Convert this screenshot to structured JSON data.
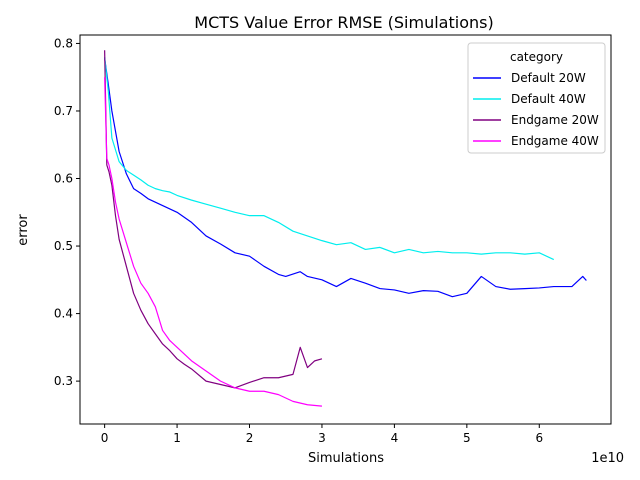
{
  "chart_data": {
    "type": "line",
    "title": "MCTS Value Error RMSE (Simulations)",
    "xlabel": "Simulations",
    "ylabel": "error",
    "x_offset_label": "1e10",
    "xlim": [
      -0.34,
      6.99
    ],
    "ylim": [
      0.2365,
      0.8125
    ],
    "x_ticks": [
      0,
      1,
      2,
      3,
      4,
      5,
      6
    ],
    "y_ticks": [
      0.3,
      0.4,
      0.5,
      0.6,
      0.7,
      0.8
    ],
    "grid": false,
    "legend": {
      "title": "category",
      "placement": "top-right"
    },
    "series": [
      {
        "name": "Default 20W",
        "color": "#0000ff",
        "x": [
          0.0,
          0.05,
          0.1,
          0.2,
          0.3,
          0.4,
          0.5,
          0.6,
          0.7,
          0.8,
          0.9,
          1.0,
          1.2,
          1.4,
          1.6,
          1.8,
          2.0,
          2.2,
          2.4,
          2.5,
          2.7,
          2.8,
          3.0,
          3.2,
          3.4,
          3.6,
          3.8,
          4.0,
          4.2,
          4.4,
          4.6,
          4.8,
          5.0,
          5.2,
          5.4,
          5.6,
          5.8,
          6.0,
          6.2,
          6.3,
          6.45,
          6.6,
          6.65
        ],
        "y": [
          0.778,
          0.74,
          0.7,
          0.64,
          0.607,
          0.585,
          0.578,
          0.57,
          0.565,
          0.56,
          0.555,
          0.55,
          0.535,
          0.515,
          0.503,
          0.49,
          0.485,
          0.47,
          0.458,
          0.455,
          0.462,
          0.455,
          0.45,
          0.44,
          0.452,
          0.445,
          0.437,
          0.435,
          0.43,
          0.434,
          0.433,
          0.425,
          0.43,
          0.455,
          0.44,
          0.436,
          0.437,
          0.438,
          0.44,
          0.44,
          0.44,
          0.455,
          0.449
        ]
      },
      {
        "name": "Default 40W",
        "color": "#00eeee",
        "x": [
          0.0,
          0.05,
          0.1,
          0.2,
          0.3,
          0.4,
          0.5,
          0.6,
          0.7,
          0.8,
          0.9,
          1.0,
          1.2,
          1.4,
          1.6,
          1.8,
          2.0,
          2.2,
          2.4,
          2.6,
          2.8,
          3.0,
          3.2,
          3.4,
          3.6,
          3.8,
          4.0,
          4.2,
          4.4,
          4.6,
          4.8,
          5.0,
          5.2,
          5.4,
          5.6,
          5.8,
          6.0,
          6.2
        ],
        "y": [
          0.78,
          0.73,
          0.66,
          0.625,
          0.612,
          0.605,
          0.598,
          0.59,
          0.585,
          0.582,
          0.58,
          0.575,
          0.568,
          0.562,
          0.556,
          0.55,
          0.545,
          0.545,
          0.535,
          0.522,
          0.515,
          0.508,
          0.502,
          0.505,
          0.495,
          0.498,
          0.49,
          0.495,
          0.49,
          0.492,
          0.49,
          0.49,
          0.488,
          0.49,
          0.49,
          0.488,
          0.49,
          0.48
        ]
      },
      {
        "name": "Endgame 20W",
        "color": "#800080",
        "x": [
          0.0,
          0.03,
          0.06,
          0.1,
          0.15,
          0.2,
          0.3,
          0.4,
          0.5,
          0.6,
          0.7,
          0.8,
          0.9,
          1.0,
          1.1,
          1.2,
          1.4,
          1.6,
          1.8,
          2.0,
          2.2,
          2.4,
          2.6,
          2.7,
          2.8,
          2.9,
          3.0
        ],
        "y": [
          0.79,
          0.62,
          0.61,
          0.59,
          0.545,
          0.51,
          0.47,
          0.43,
          0.405,
          0.385,
          0.37,
          0.355,
          0.345,
          0.333,
          0.325,
          0.318,
          0.3,
          0.295,
          0.29,
          0.298,
          0.305,
          0.305,
          0.31,
          0.35,
          0.32,
          0.33,
          0.333
        ]
      },
      {
        "name": "Endgame 40W",
        "color": "#ff00ff",
        "x": [
          0.0,
          0.03,
          0.06,
          0.1,
          0.15,
          0.2,
          0.3,
          0.4,
          0.5,
          0.6,
          0.7,
          0.8,
          0.9,
          1.0,
          1.1,
          1.2,
          1.4,
          1.6,
          1.8,
          2.0,
          2.2,
          2.4,
          2.6,
          2.8,
          3.0
        ],
        "y": [
          0.75,
          0.63,
          0.62,
          0.6,
          0.565,
          0.54,
          0.505,
          0.47,
          0.445,
          0.43,
          0.41,
          0.375,
          0.36,
          0.35,
          0.34,
          0.33,
          0.315,
          0.3,
          0.29,
          0.285,
          0.285,
          0.28,
          0.27,
          0.265,
          0.263
        ]
      }
    ]
  }
}
